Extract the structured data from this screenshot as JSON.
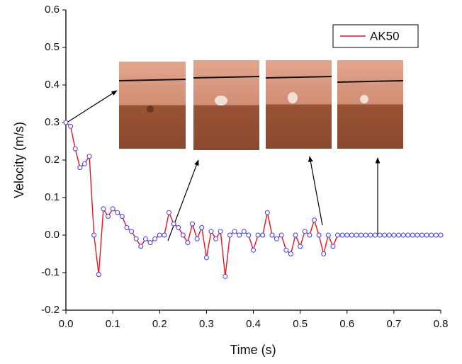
{
  "chart_data": {
    "type": "line",
    "xlabel": "Time (s)",
    "ylabel": "Velocity (m/s)",
    "xlim": [
      0,
      0.8
    ],
    "ylim": [
      -0.2,
      0.6
    ],
    "xticks": [
      {
        "value": 0,
        "label": "0.0"
      },
      0.1,
      0.2,
      0.3,
      0.4,
      0.5,
      0.6,
      0.7,
      0.8
    ],
    "yticks": [
      -0.2,
      -0.1,
      {
        "value": 0,
        "label": "0.0"
      },
      0.1,
      0.2,
      0.3,
      0.4,
      0.5,
      0.6
    ],
    "grid": false,
    "legend": "upper right",
    "series": [
      {
        "name": "AK50",
        "color": "#e8141c",
        "marker_color": "#3a3aff",
        "x": [
          0,
          0.01,
          0.02,
          0.03,
          0.04,
          0.05,
          0.06,
          0.07,
          0.08,
          0.09,
          0.1,
          0.11,
          0.12,
          0.13,
          0.14,
          0.15,
          0.16,
          0.17,
          0.18,
          0.19,
          0.2,
          0.21,
          0.22,
          0.23,
          0.24,
          0.25,
          0.26,
          0.27,
          0.28,
          0.29,
          0.3,
          0.31,
          0.32,
          0.33,
          0.34,
          0.35,
          0.36,
          0.37,
          0.38,
          0.39,
          0.4,
          0.41,
          0.42,
          0.43,
          0.44,
          0.45,
          0.46,
          0.47,
          0.48,
          0.49,
          0.5,
          0.51,
          0.52,
          0.53,
          0.54,
          0.55,
          0.56,
          0.57,
          0.58,
          0.59,
          0.6,
          0.61,
          0.62,
          0.63,
          0.64,
          0.65,
          0.66,
          0.67,
          0.68,
          0.69,
          0.7,
          0.71,
          0.72,
          0.73,
          0.74,
          0.75,
          0.76,
          0.77,
          0.78,
          0.79,
          0.8
        ],
        "values": [
          0.3,
          0.29,
          0.23,
          0.18,
          0.19,
          0.21,
          0,
          -0.105,
          0.07,
          0.05,
          0.07,
          0.06,
          0.05,
          0.02,
          0.01,
          -0.01,
          -0.03,
          -0.01,
          -0.02,
          -0.01,
          0,
          0,
          0.06,
          0.03,
          0.02,
          0,
          -0.02,
          0.03,
          -0.01,
          0.02,
          -0.06,
          0.01,
          -0.01,
          0.01,
          -0.11,
          0,
          0.01,
          0,
          0.01,
          0,
          -0.04,
          0,
          0,
          0.06,
          0,
          -0.01,
          0,
          -0.04,
          -0.05,
          0,
          -0.03,
          0.01,
          0,
          0.04,
          0,
          -0.05,
          0,
          -0.03,
          0,
          0,
          0,
          0,
          0,
          0,
          0,
          0,
          0,
          0,
          0,
          0,
          0,
          0,
          0,
          0,
          0,
          0,
          0,
          0,
          0,
          0,
          0
        ]
      }
    ]
  }
}
